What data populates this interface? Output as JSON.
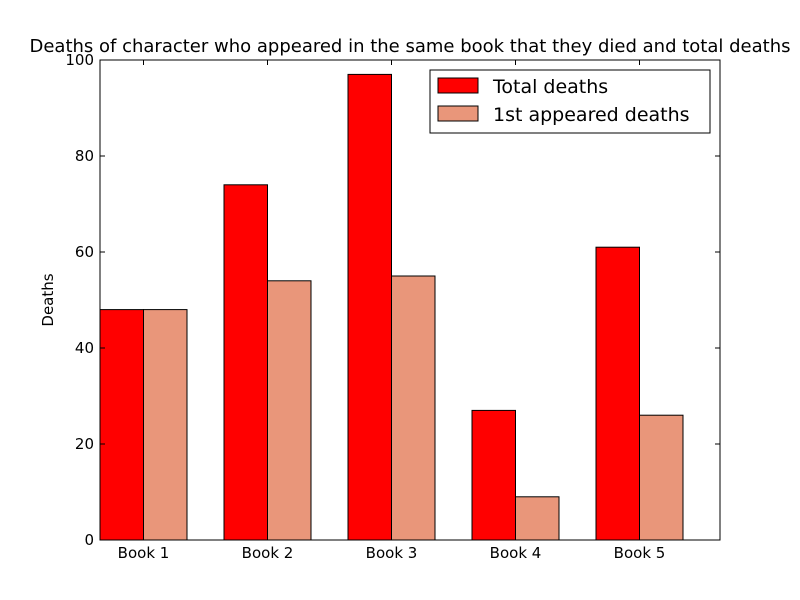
{
  "chart_data": {
    "type": "bar",
    "title": "Deaths of character who appeared in the same book that they died and total deaths",
    "xlabel": "",
    "ylabel": "Deaths",
    "categories": [
      "Book 1",
      "Book 2",
      "Book 3",
      "Book 4",
      "Book 5"
    ],
    "series": [
      {
        "name": "Total deaths",
        "values": [
          48,
          74,
          97,
          27,
          61
        ],
        "color": "#ff0000"
      },
      {
        "name": "1st appeared deaths",
        "values": [
          48,
          54,
          55,
          9,
          26
        ],
        "color": "#e9967a"
      }
    ],
    "ylim": [
      0,
      100
    ],
    "yticks": [
      0,
      20,
      40,
      60,
      80,
      100
    ],
    "grid": false,
    "legend_position": "top-right"
  }
}
